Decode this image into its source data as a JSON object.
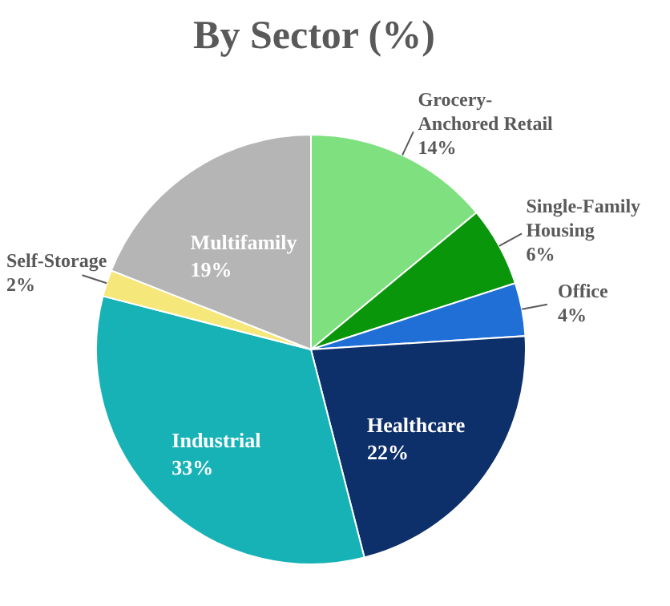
{
  "chart_data": {
    "type": "pie",
    "title": "By Sector (%)",
    "categories": [
      "Grocery-Anchored Retail",
      "Single-Family Housing",
      "Office",
      "Healthcare",
      "Industrial",
      "Self-Storage",
      "Multifamily"
    ],
    "values": [
      14,
      6,
      4,
      22,
      33,
      2,
      19
    ],
    "value_labels": [
      "14%",
      "6%",
      "4%",
      "22%",
      "33%",
      "2%",
      "19%"
    ],
    "colors": [
      "#7ee07e",
      "#0a960a",
      "#1f6fd6",
      "#0d2f6a",
      "#17b2b6",
      "#f6e77a",
      "#b5b5b5"
    ]
  }
}
